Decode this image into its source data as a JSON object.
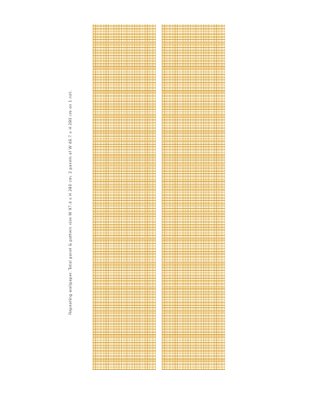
{
  "caption": "Repeating wallpaper. Total panel & pattern size W 97.4 x H 280 cm. 2 panels of W 48.7 x H 280 cm on 1 roll.",
  "panels": [
    {
      "name": "left",
      "color": "#e2b04a"
    },
    {
      "name": "right",
      "color": "#e2b04a"
    }
  ],
  "colors": {
    "background": "#ffffff",
    "grid_line": "#d4a030",
    "panel_base": "#fcf2d9"
  }
}
